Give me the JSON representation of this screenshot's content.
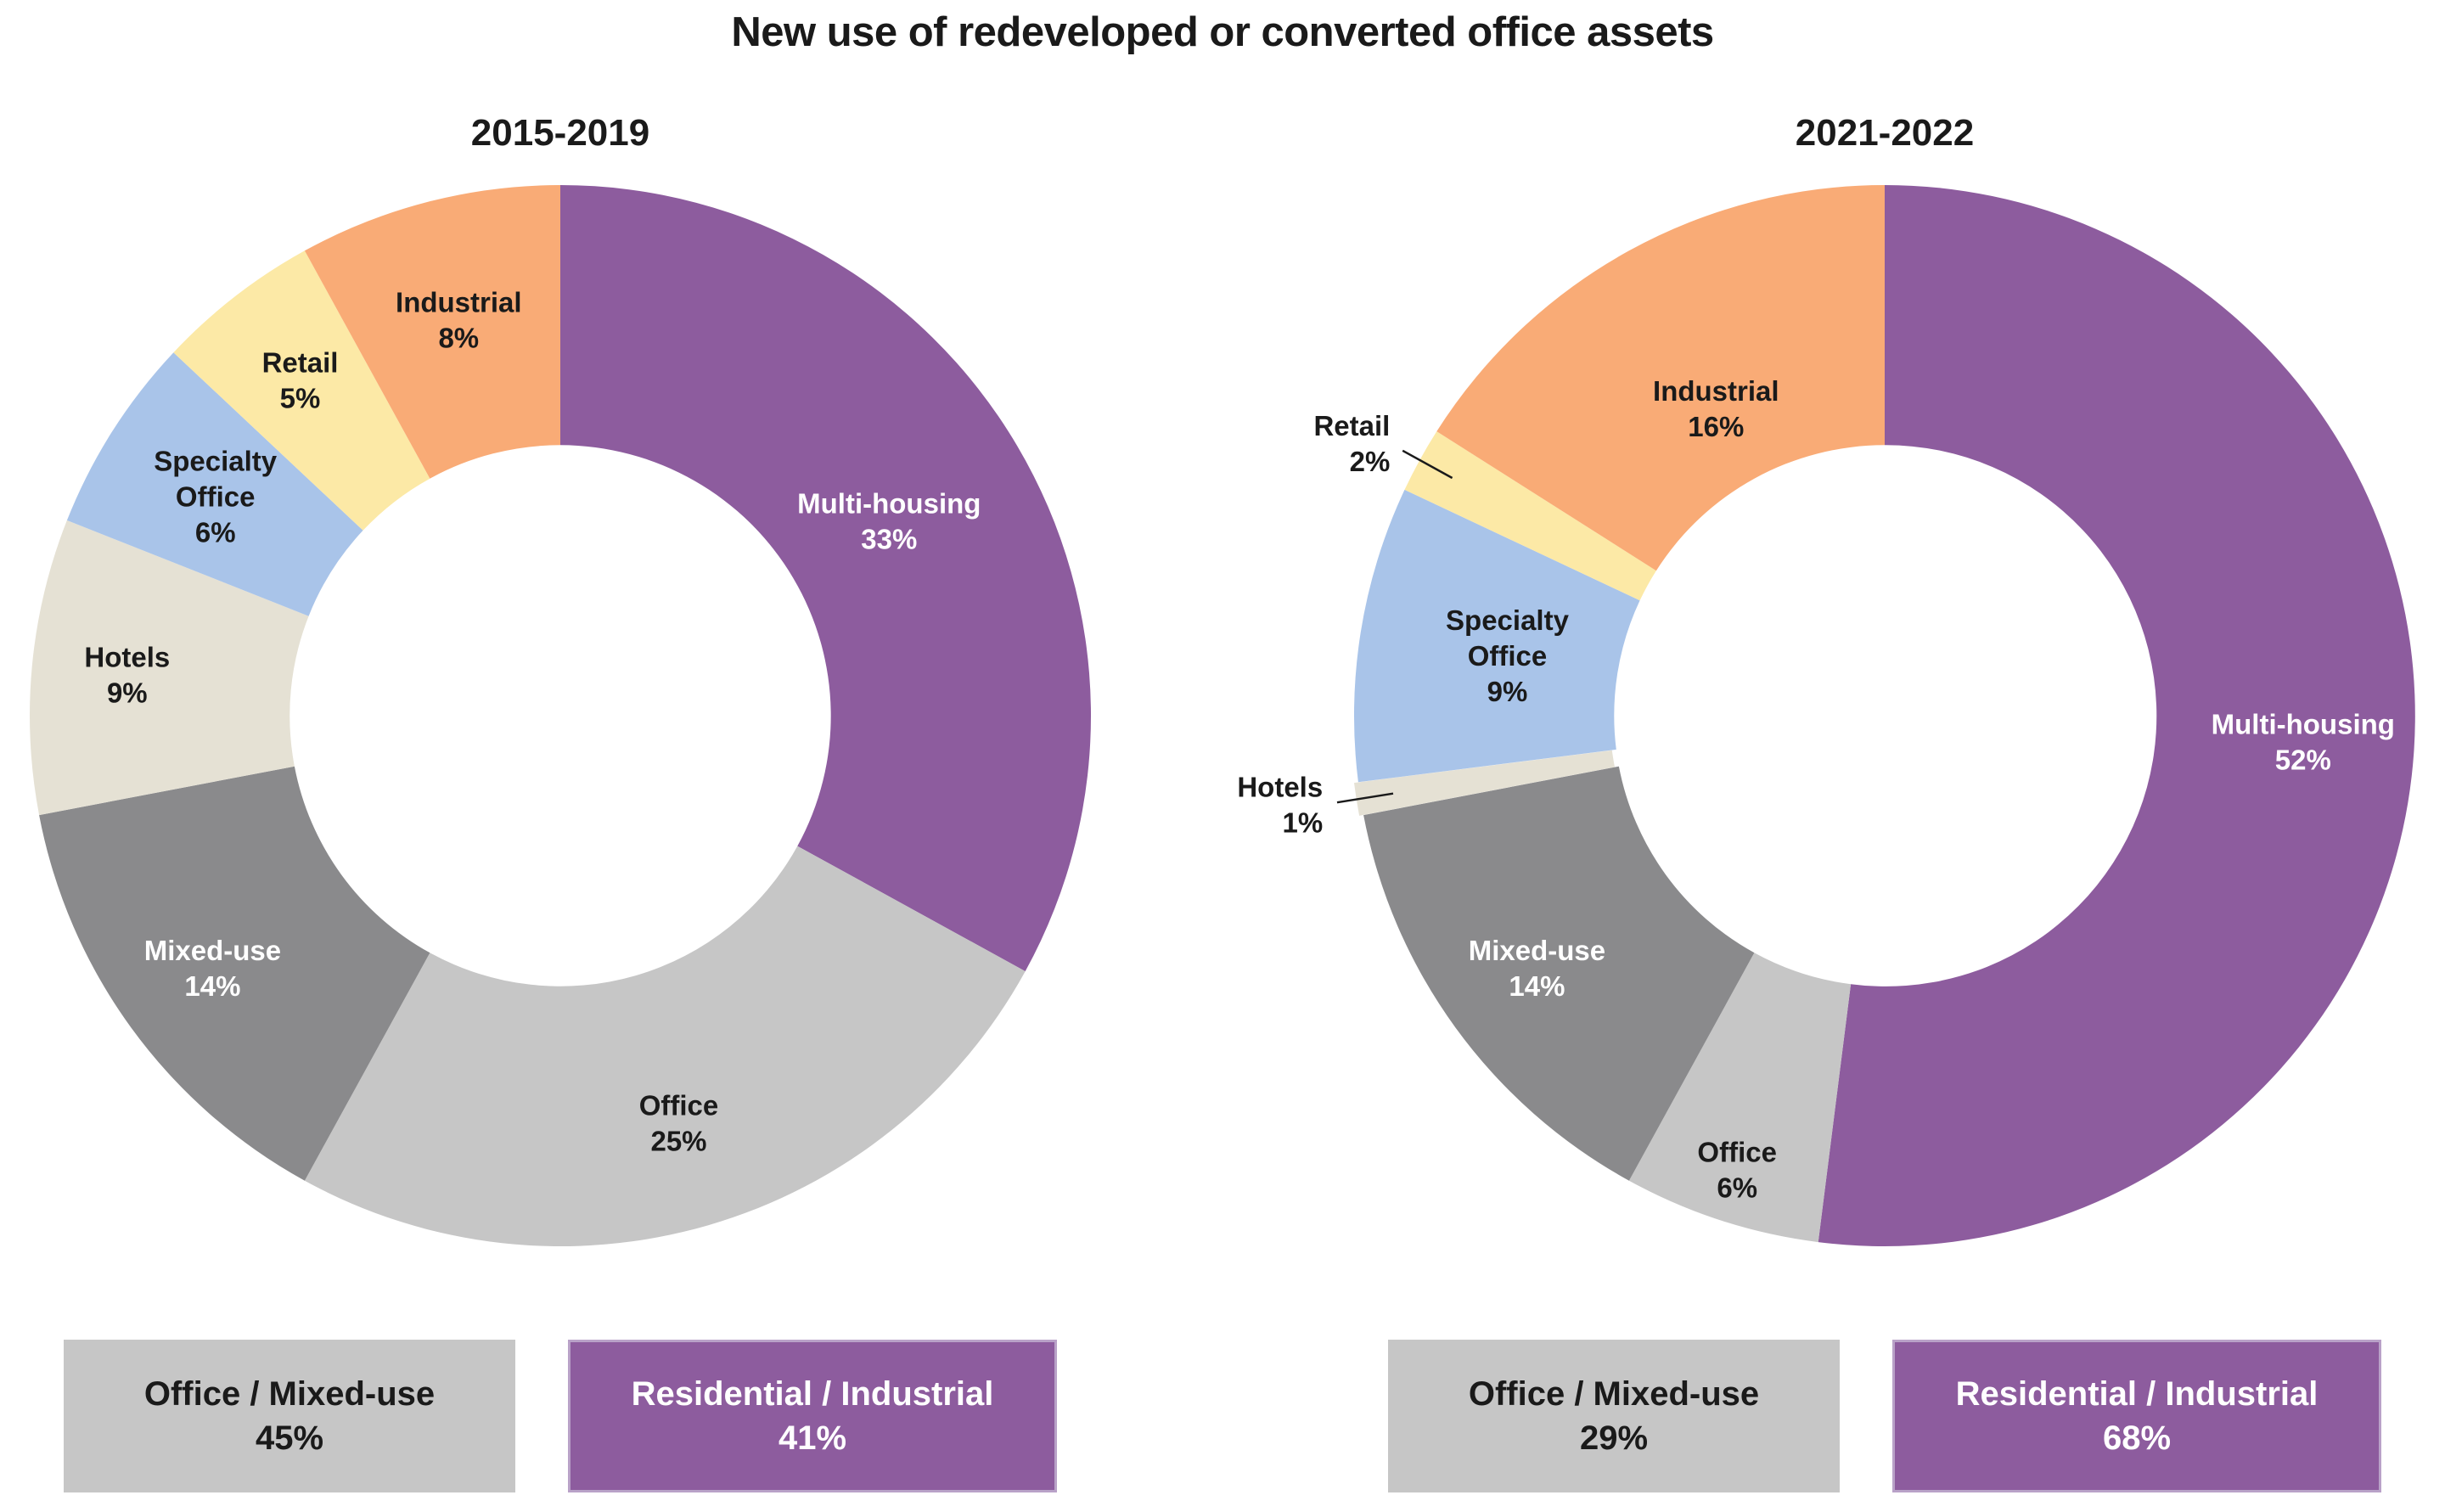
{
  "title": "New use of redeveloped or converted office assets",
  "chart_data": [
    {
      "type": "pie",
      "subtitle": "2015-2019",
      "donut": true,
      "donut_hole": 0.51,
      "start_angle": 0,
      "direction": "clockwise",
      "categories": [
        "Multi-housing",
        "Office",
        "Mixed-use",
        "Hotels",
        "Specialty Office",
        "Retail",
        "Industrial"
      ],
      "values": [
        33,
        25,
        14,
        9,
        6,
        5,
        8
      ],
      "slices": [
        {
          "label": "Multi-housing",
          "value": 33,
          "pct": "33%",
          "color": "#8d5c9e",
          "text_color": "#ffffff",
          "label_r": 0.72
        },
        {
          "label": "Office",
          "value": 25,
          "pct": "25%",
          "color": "#c6c6c6",
          "text_color": "#1a1a1a",
          "label_r": 0.8
        },
        {
          "label": "Mixed-use",
          "value": 14,
          "pct": "14%",
          "color": "#8a8a8c",
          "text_color": "#ffffff",
          "label_r": 0.81
        },
        {
          "label": "Hotels",
          "value": 9,
          "pct": "9%",
          "color": "#e5e1d4",
          "text_color": "#1a1a1a",
          "label_r": 0.82
        },
        {
          "label": "Specialty Office",
          "value": 6,
          "pct": "6%",
          "color": "#a9c4e9",
          "text_color": "#1a1a1a",
          "label_r": 0.77
        },
        {
          "label": "Retail",
          "value": 5,
          "pct": "5%",
          "color": "#fce9a6",
          "text_color": "#1a1a1a",
          "label_r": 0.8
        },
        {
          "label": "Industrial",
          "value": 8,
          "pct": "8%",
          "color": "#f9ab76",
          "text_color": "#1a1a1a",
          "label_r": 0.77
        }
      ],
      "summary": [
        {
          "label": "Office / Mixed-use",
          "pct": "45%",
          "bg": "#c6c6c6",
          "fg": "#1a1a1a"
        },
        {
          "label": "Residential / Industrial",
          "pct": "41%",
          "bg": "#8d5c9e",
          "fg": "#ffffff",
          "border": "#b9a2c8"
        }
      ]
    },
    {
      "type": "pie",
      "subtitle": "2021-2022",
      "donut": true,
      "donut_hole": 0.51,
      "start_angle": 0,
      "direction": "clockwise",
      "categories": [
        "Multi-housing",
        "Office",
        "Mixed-use",
        "Hotels",
        "Specialty Office",
        "Retail",
        "Industrial"
      ],
      "values": [
        52,
        6,
        14,
        1,
        9,
        2,
        16
      ],
      "slices": [
        {
          "label": "Multi-housing",
          "value": 52,
          "pct": "52%",
          "color": "#8d5c9e",
          "text_color": "#ffffff",
          "label_r": 0.79
        },
        {
          "label": "Office",
          "value": 6,
          "pct": "6%",
          "color": "#c6c6c6",
          "text_color": "#1a1a1a",
          "label_r": 0.9
        },
        {
          "label": "Mixed-use",
          "value": 14,
          "pct": "14%",
          "color": "#8a8a8c",
          "text_color": "#ffffff",
          "label_r": 0.81
        },
        {
          "label": "Hotels",
          "value": 1,
          "pct": "1%",
          "color": "#e5e1d4",
          "text_color": "#1a1a1a",
          "placement": "outside",
          "offset": 5
        },
        {
          "label": "Specialty Office",
          "value": 9,
          "pct": "9%",
          "color": "#a9c4e9",
          "text_color": "#1a1a1a",
          "label_r": 0.72
        },
        {
          "label": "Retail",
          "value": 2,
          "pct": "2%",
          "color": "#fce9a6",
          "text_color": "#1a1a1a",
          "placement": "outside"
        },
        {
          "label": "Industrial",
          "value": 16,
          "pct": "16%",
          "color": "#f9ab76",
          "text_color": "#1a1a1a",
          "label_r": 0.66
        }
      ],
      "summary": [
        {
          "label": "Office / Mixed-use",
          "pct": "29%",
          "bg": "#c6c6c6",
          "fg": "#1a1a1a"
        },
        {
          "label": "Residential / Industrial",
          "pct": "68%",
          "bg": "#8d5c9e",
          "fg": "#ffffff",
          "border": "#b9a2c8"
        }
      ]
    }
  ],
  "colors": {
    "multi_housing": "#8d5c9e",
    "office": "#c6c6c6",
    "mixed_use": "#8a8a8c",
    "hotels": "#e5e1d4",
    "specialty_office": "#a9c4e9",
    "retail": "#fce9a6",
    "industrial": "#f9ab76",
    "leader_line": "#1a1a1a"
  }
}
